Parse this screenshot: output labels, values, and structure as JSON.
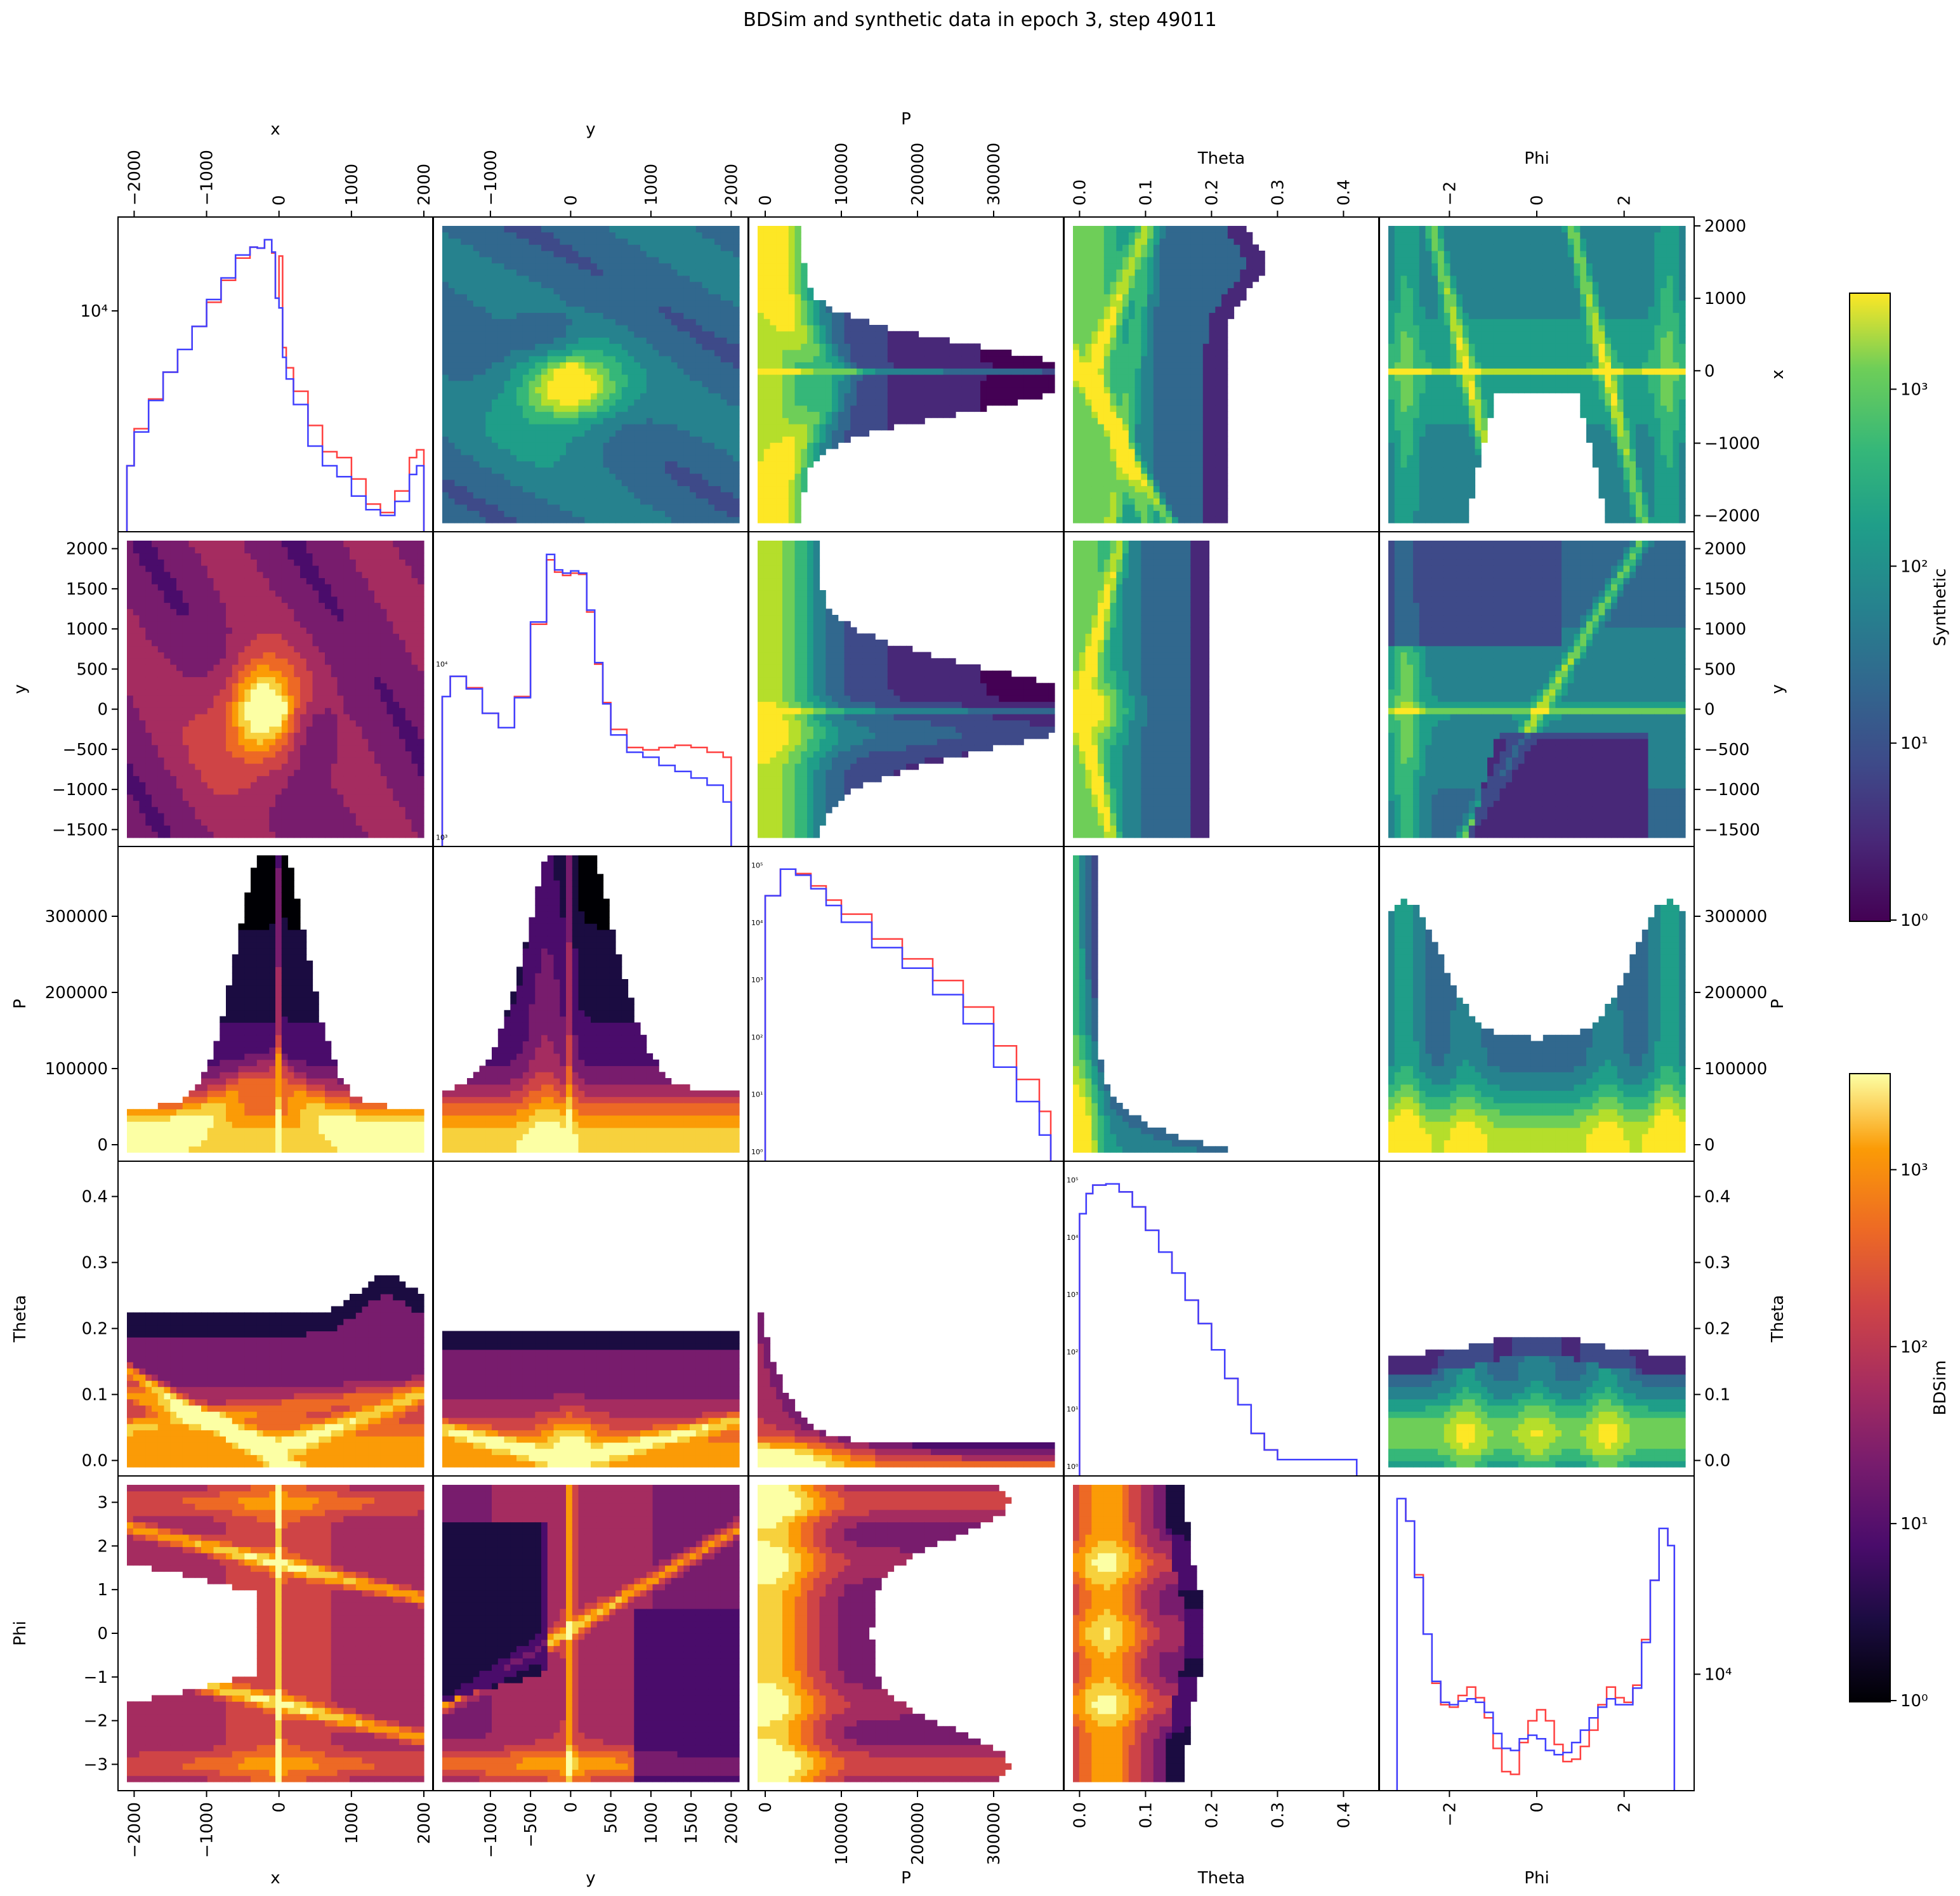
{
  "title": "BDSim and synthetic data in epoch 3, step 49011",
  "chart_data": {
    "type": "heatmap",
    "subtype": "corner-plot",
    "variables": [
      "x",
      "y",
      "P",
      "Theta",
      "Phi"
    ],
    "axes": {
      "x": {
        "range": [
          -2100,
          2000
        ],
        "ticks": [
          -2000,
          -1000,
          0,
          1000,
          2000
        ],
        "tick_labels": [
          "−2000",
          "−1000",
          "0",
          "1000",
          "2000"
        ]
      },
      "y": {
        "range": [
          -1600,
          2100
        ],
        "ticks": [
          -1500,
          -1000,
          -500,
          0,
          500,
          1000,
          1500,
          2000
        ],
        "tick_labels": [
          "−1500",
          "−1000",
          "−500",
          "0",
          "500",
          "1000",
          "1500",
          "2000"
        ],
        "top_ticks": [
          -1000,
          0,
          1000,
          2000
        ],
        "top_tick_labels": [
          "−1000",
          "0",
          "1000",
          "2000"
        ]
      },
      "P": {
        "range": [
          -10000,
          380000
        ],
        "ticks": [
          0,
          100000,
          200000,
          300000
        ],
        "tick_labels": [
          "0",
          "100000",
          "200000",
          "300000"
        ]
      },
      "Theta": {
        "range": [
          -0.01,
          0.44
        ],
        "ticks": [
          0.0,
          0.1,
          0.2,
          0.3,
          0.4
        ],
        "tick_labels": [
          "0.0",
          "0.1",
          "0.2",
          "0.3",
          "0.4"
        ]
      },
      "Phi": {
        "range": [
          -3.4,
          3.4
        ],
        "ticks": [
          -3,
          -2,
          -1,
          0,
          1,
          2,
          3
        ],
        "tick_labels": [
          "−3",
          "−2",
          "−1",
          "0",
          "1",
          "2",
          "3"
        ],
        "top_ticks": [
          -2,
          0,
          2
        ],
        "top_tick_labels": [
          "−2",
          "0",
          "2"
        ]
      }
    },
    "upper_triangle": "Synthetic",
    "lower_triangle": "BDSim",
    "diagonal_series": [
      {
        "name": "BDSim",
        "color": "#ff4040"
      },
      {
        "name": "Synthetic",
        "color": "#4040ff"
      }
    ],
    "diagonal_hist": {
      "x": {
        "log": true,
        "tick": "10⁴",
        "tick_value": 10000,
        "x": [
          -2100,
          -2000,
          -1800,
          -1600,
          -1400,
          -1200,
          -1000,
          -800,
          -600,
          -400,
          -300,
          -200,
          -100,
          -50,
          0,
          50,
          100,
          200,
          400,
          600,
          800,
          1000,
          1200,
          1400,
          1600,
          1800,
          1900,
          2000
        ],
        "BDSim": [
          3500,
          4500,
          5500,
          6600,
          7700,
          9000,
          10600,
          12300,
          14300,
          15400,
          15300,
          16200,
          14800,
          10900,
          14500,
          7800,
          6800,
          5800,
          4600,
          3850,
          3700,
          3200,
          2700,
          2550,
          2950,
          3700,
          3900,
          3800
        ],
        "Synthetic": [
          3500,
          4400,
          5450,
          6600,
          7700,
          9000,
          10800,
          12500,
          14600,
          15400,
          15300,
          16200,
          14900,
          10900,
          10200,
          7300,
          6300,
          5300,
          4000,
          3500,
          3250,
          2850,
          2600,
          2500,
          2750,
          3300,
          3500,
          3300
        ]
      },
      "y": {
        "log": true,
        "ticks": [
          "10⁴",
          "10³"
        ],
        "tick_values": [
          10000,
          1000
        ],
        "x": [
          -1600,
          -1500,
          -1300,
          -1100,
          -900,
          -700,
          -500,
          -300,
          -200,
          -100,
          0,
          100,
          200,
          300,
          400,
          500,
          700,
          900,
          1100,
          1300,
          1500,
          1700,
          1900,
          2000
        ],
        "BDSim": [
          6500,
          8500,
          7300,
          5200,
          4300,
          6500,
          17000,
          40000,
          34000,
          32500,
          33500,
          33000,
          20000,
          10000,
          6000,
          4200,
          3300,
          3200,
          3300,
          3400,
          3300,
          3100,
          2900,
          2700
        ],
        "Synthetic": [
          6500,
          8500,
          7200,
          5200,
          4300,
          6400,
          17500,
          43000,
          35000,
          33500,
          34500,
          33500,
          20500,
          10200,
          5900,
          3900,
          3100,
          2900,
          2600,
          2400,
          2200,
          2000,
          1600,
          1100
        ]
      },
      "P": {
        "log": true,
        "tick_labels": [
          "10⁰",
          "10¹",
          "10²",
          "10³",
          "10⁴",
          "10⁵"
        ],
        "x": [
          0,
          20000,
          40000,
          60000,
          80000,
          100000,
          140000,
          180000,
          220000,
          260000,
          300000,
          330000,
          360000,
          375000
        ],
        "BDSim": [
          30000,
          90000,
          75000,
          45000,
          25000,
          14000,
          5000,
          2200,
          900,
          300,
          60,
          15,
          4,
          2
        ],
        "Synthetic": [
          30000,
          90000,
          70000,
          40000,
          20000,
          10000,
          3500,
          1500,
          500,
          150,
          25,
          6,
          1.5,
          1
        ]
      },
      "Theta": {
        "log": true,
        "tick_labels": [
          "10⁰",
          "10¹",
          "10²",
          "10³",
          "10⁴",
          "10⁵"
        ],
        "x": [
          0.0,
          0.01,
          0.02,
          0.04,
          0.06,
          0.08,
          0.1,
          0.12,
          0.14,
          0.16,
          0.18,
          0.2,
          0.22,
          0.24,
          0.26,
          0.28,
          0.3,
          0.42
        ],
        "BDSim": [
          30000,
          70000,
          100000,
          105000,
          75000,
          40000,
          15000,
          6000,
          2500,
          800,
          300,
          100,
          30,
          10,
          3,
          1.5,
          1,
          1
        ],
        "Synthetic": [
          30000,
          70000,
          100000,
          105000,
          75000,
          40000,
          15000,
          6000,
          2500,
          800,
          300,
          100,
          30,
          10,
          3,
          1.5,
          1,
          1
        ]
      },
      "Phi": {
        "log": true,
        "tick": "10⁴",
        "tick_value": 10000,
        "x": [
          -3.2,
          -3.0,
          -2.8,
          -2.6,
          -2.4,
          -2.2,
          -2.0,
          -1.8,
          -1.6,
          -1.4,
          -1.2,
          -1.0,
          -0.8,
          -0.6,
          -0.4,
          -0.2,
          0.0,
          0.2,
          0.4,
          0.6,
          0.8,
          1.0,
          1.2,
          1.4,
          1.6,
          1.8,
          2.0,
          2.2,
          2.4,
          2.6,
          2.8,
          3.0,
          3.15
        ],
        "BDSim": [
          78000,
          60000,
          32000,
          16000,
          9000,
          7000,
          6800,
          7800,
          8600,
          7600,
          6000,
          4200,
          3200,
          3100,
          4500,
          5800,
          6600,
          5800,
          4400,
          3600,
          3700,
          4300,
          5200,
          7000,
          8600,
          7600,
          7200,
          8800,
          15000,
          30000,
          55000,
          45000,
          30000
        ],
        "Synthetic": [
          78000,
          60000,
          31000,
          16000,
          9200,
          7200,
          7000,
          7300,
          7500,
          7200,
          6400,
          5000,
          4200,
          4100,
          4700,
          4900,
          4700,
          4100,
          3900,
          4000,
          4500,
          5200,
          6000,
          6800,
          7500,
          7000,
          7000,
          8500,
          14500,
          30000,
          55000,
          45000,
          30000
        ]
      }
    },
    "colorbars": [
      {
        "label": "Synthetic",
        "colormap": "viridis",
        "scale": "log",
        "ticks": [
          "10⁰",
          "10¹",
          "10²",
          "10³"
        ]
      },
      {
        "label": "BDSim",
        "colormap": "inferno",
        "scale": "log",
        "ticks": [
          "10⁰",
          "10¹",
          "10²",
          "10³"
        ]
      }
    ]
  }
}
